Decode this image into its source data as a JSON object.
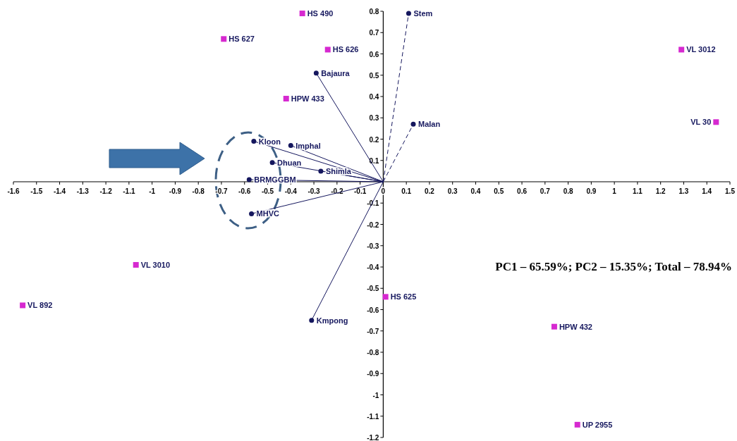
{
  "chart_data": {
    "type": "scatter",
    "xlim": [
      -1.6,
      1.5
    ],
    "ylim": [
      -1.2,
      0.8
    ],
    "xticks": [
      -1.6,
      -1.5,
      -1.4,
      -1.3,
      -1.2,
      -1.1,
      -1,
      -0.9,
      -0.8,
      -0.7,
      -0.6,
      -0.5,
      -0.4,
      -0.3,
      -0.2,
      -0.1,
      0,
      0.1,
      0.2,
      0.3,
      0.4,
      0.5,
      0.6,
      0.7,
      0.8,
      0.9,
      1,
      1.1,
      1.2,
      1.3,
      1.4,
      1.5
    ],
    "yticks": [
      0.8,
      0.7,
      0.6,
      0.5,
      0.4,
      0.3,
      0.2,
      0.1,
      {
        "value": 0,
        "label": null
      },
      -0.1,
      -0.2,
      -0.3,
      -0.4,
      -0.5,
      -0.6,
      -0.7,
      -0.8,
      -0.9,
      -1,
      -1.1,
      -1.2
    ],
    "series": [
      {
        "marker": "square",
        "color": "#d629d0",
        "x": [
          -0.35,
          -0.69,
          -0.24,
          -0.42,
          1.29,
          1.44,
          -1.07,
          -1.56,
          0.01,
          0.74,
          0.84
        ],
        "values": [
          0.79,
          0.67,
          0.62,
          0.39,
          0.62,
          0.28,
          -0.39,
          -0.58,
          -0.54,
          -0.68,
          -1.14
        ]
      },
      {
        "marker": "circle",
        "color": "#15175e",
        "x": [
          0.11,
          0.13,
          -0.29,
          -0.56,
          -0.4,
          -0.48,
          -0.27,
          -0.58,
          -0.57,
          -0.31
        ],
        "values": [
          0.79,
          0.27,
          0.51,
          0.19,
          0.17,
          0.09,
          0.05,
          0.01,
          -0.15,
          -0.65
        ]
      },
      {
        "type": "line",
        "marker": "none",
        "line_style": "dashed",
        "color": "#15175e",
        "x": [
          0,
          0.11
        ],
        "values": [
          0,
          0.79
        ]
      },
      {
        "type": "line",
        "marker": "none",
        "line_style": "dashed",
        "color": "#15175e",
        "x": [
          0,
          0.13
        ],
        "values": [
          0,
          0.27
        ]
      },
      {
        "type": "line",
        "marker": "none",
        "line_style": "solid",
        "color": "#15175e",
        "x": [
          0,
          -0.29
        ],
        "values": [
          0,
          0.51
        ]
      },
      {
        "type": "line",
        "marker": "none",
        "line_style": "solid",
        "color": "#15175e",
        "x": [
          0,
          -0.56
        ],
        "values": [
          0,
          0.19
        ]
      },
      {
        "type": "line",
        "marker": "none",
        "line_style": "solid",
        "color": "#15175e",
        "x": [
          0,
          -0.4
        ],
        "values": [
          0,
          0.17
        ]
      },
      {
        "type": "line",
        "marker": "none",
        "line_style": "solid",
        "color": "#15175e",
        "x": [
          0,
          -0.48
        ],
        "values": [
          0,
          0.09
        ]
      },
      {
        "type": "line",
        "marker": "none",
        "line_style": "solid",
        "color": "#15175e",
        "x": [
          0,
          -0.27
        ],
        "values": [
          0,
          0.05
        ]
      },
      {
        "type": "line",
        "marker": "none",
        "line_style": "solid",
        "color": "#15175e",
        "x": [
          0,
          -0.58
        ],
        "values": [
          0,
          0.01
        ]
      },
      {
        "type": "line",
        "marker": "none",
        "line_style": "solid",
        "color": "#15175e",
        "x": [
          0,
          -0.57
        ],
        "values": [
          0,
          -0.15
        ]
      },
      {
        "type": "line",
        "marker": "none",
        "line_style": "solid",
        "color": "#15175e",
        "x": [
          0,
          -0.31
        ],
        "values": [
          0,
          -0.65
        ]
      }
    ],
    "annotations": [
      {
        "text": "HS 490",
        "x": -0.35,
        "y": 0.79
      },
      {
        "text": "HS 627",
        "x": -0.69,
        "y": 0.67
      },
      {
        "text": "HS 626",
        "x": -0.24,
        "y": 0.62
      },
      {
        "text": "HPW 433",
        "x": -0.42,
        "y": 0.39
      },
      {
        "text": "VL 3012",
        "x": 1.29,
        "y": 0.62
      },
      {
        "text": "VL 30",
        "x": 1.44,
        "y": 0.28
      },
      {
        "text": "VL 3010",
        "x": -1.07,
        "y": -0.39
      },
      {
        "text": "VL 892",
        "x": -1.56,
        "y": -0.58
      },
      {
        "text": "HS 625",
        "x": 0.01,
        "y": -0.54
      },
      {
        "text": "HPW 432",
        "x": 0.74,
        "y": -0.68
      },
      {
        "text": "UP 2955",
        "x": 0.84,
        "y": -1.14
      },
      {
        "text": "Stem",
        "x": 0.11,
        "y": 0.79
      },
      {
        "text": "Malan",
        "x": 0.13,
        "y": 0.27
      },
      {
        "text": "Bajaura",
        "x": -0.29,
        "y": 0.51
      },
      {
        "text": "Kloon",
        "x": -0.56,
        "y": 0.19
      },
      {
        "text": "Imphal",
        "x": -0.4,
        "y": 0.17
      },
      {
        "text": "Dhuan",
        "x": -0.48,
        "y": 0.09
      },
      {
        "text": "Shimla",
        "x": -0.27,
        "y": 0.05
      },
      {
        "text": "BRMGGBM",
        "x": -0.58,
        "y": 0.01
      },
      {
        "text": "MHVC",
        "x": -0.57,
        "y": -0.15
      },
      {
        "text": "Kmpong",
        "x": -0.31,
        "y": -0.65
      },
      "PC1 – 65.59%; PC2 – 15.35%; Total – 78.94%"
    ]
  }
}
